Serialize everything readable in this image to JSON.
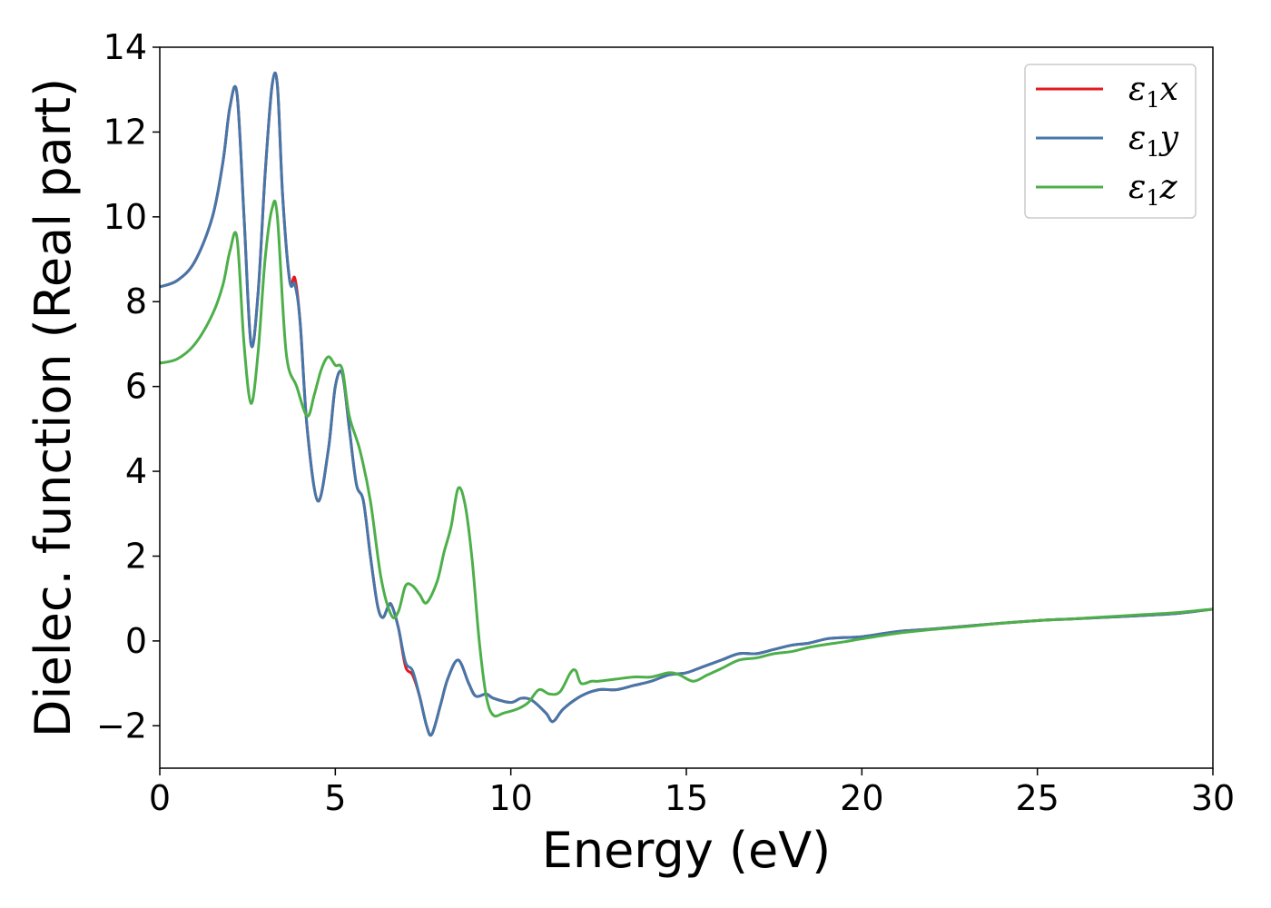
{
  "chart_data": {
    "type": "line",
    "xlabel": "Energy (eV)",
    "ylabel": "Dielec. function (Real part)",
    "xlim": [
      0,
      30
    ],
    "ylim": [
      -3,
      14
    ],
    "xticks": [
      0,
      5,
      10,
      15,
      20,
      25,
      30
    ],
    "xtick_labels": [
      "0",
      "5",
      "10",
      "15",
      "20",
      "25",
      "30"
    ],
    "yticks": [
      -2,
      0,
      2,
      4,
      6,
      8,
      10,
      12,
      14
    ],
    "ytick_labels": [
      "−2",
      "0",
      "2",
      "4",
      "6",
      "8",
      "10",
      "12",
      "14"
    ],
    "grid": false,
    "legend_position": "top-right",
    "series": [
      {
        "name": "ε₁x",
        "name_base": "ε",
        "name_sub": "1",
        "name_var": "x",
        "color": "#e41a1c",
        "x": [
          0,
          0.5,
          1.0,
          1.5,
          1.8,
          2.0,
          2.2,
          2.4,
          2.6,
          2.8,
          3.0,
          3.2,
          3.35,
          3.5,
          3.7,
          3.85,
          4.0,
          4.2,
          4.5,
          4.8,
          5.0,
          5.2,
          5.4,
          5.6,
          5.8,
          6.0,
          6.2,
          6.35,
          6.5,
          6.6,
          6.8,
          7.0,
          7.2,
          7.4,
          7.6,
          7.75,
          8.0,
          8.2,
          8.5,
          8.8,
          9.0,
          9.3,
          9.5,
          10.0,
          10.3,
          10.6,
          11.0,
          11.2,
          11.5,
          12.0,
          12.5,
          13.0,
          13.5,
          14.0,
          14.5,
          15.0,
          15.5,
          16.0,
          16.5,
          17.0,
          17.5,
          18.0,
          18.5,
          19.0,
          19.5,
          20.0,
          21.0,
          22.0,
          23.0,
          24.0,
          25.0,
          26.0,
          27.0,
          28.0,
          29.0,
          30.0
        ],
        "values": [
          8.35,
          8.5,
          8.95,
          10.0,
          11.3,
          12.6,
          12.9,
          10.0,
          7.0,
          8.2,
          11.0,
          13.1,
          13.1,
          10.5,
          8.5,
          8.55,
          7.5,
          5.0,
          3.3,
          4.5,
          6.0,
          6.3,
          5.0,
          3.7,
          3.3,
          2.0,
          0.85,
          0.55,
          0.8,
          0.85,
          0.3,
          -0.6,
          -0.8,
          -1.3,
          -2.0,
          -2.2,
          -1.5,
          -0.9,
          -0.45,
          -1.0,
          -1.3,
          -1.25,
          -1.35,
          -1.45,
          -1.35,
          -1.4,
          -1.7,
          -1.9,
          -1.6,
          -1.3,
          -1.15,
          -1.15,
          -1.05,
          -0.95,
          -0.8,
          -0.75,
          -0.6,
          -0.45,
          -0.3,
          -0.3,
          -0.2,
          -0.1,
          -0.05,
          0.05,
          0.08,
          0.1,
          0.22,
          0.28,
          0.35,
          0.42,
          0.48,
          0.52,
          0.56,
          0.6,
          0.65,
          0.75
        ]
      },
      {
        "name": "ε₁y",
        "name_base": "ε",
        "name_sub": "1",
        "name_var": "y",
        "color": "#4477aa",
        "x": [
          0,
          0.5,
          1.0,
          1.5,
          1.8,
          2.0,
          2.2,
          2.4,
          2.6,
          2.8,
          3.0,
          3.2,
          3.35,
          3.5,
          3.7,
          3.85,
          4.0,
          4.2,
          4.5,
          4.8,
          5.0,
          5.2,
          5.4,
          5.6,
          5.8,
          6.0,
          6.2,
          6.35,
          6.5,
          6.6,
          6.8,
          7.0,
          7.2,
          7.4,
          7.6,
          7.75,
          8.0,
          8.2,
          8.5,
          8.8,
          9.0,
          9.3,
          9.5,
          10.0,
          10.3,
          10.6,
          11.0,
          11.2,
          11.5,
          12.0,
          12.5,
          13.0,
          13.5,
          14.0,
          14.5,
          15.0,
          15.5,
          16.0,
          16.5,
          17.0,
          17.5,
          18.0,
          18.5,
          19.0,
          19.5,
          20.0,
          21.0,
          22.0,
          23.0,
          24.0,
          25.0,
          26.0,
          27.0,
          28.0,
          29.0,
          30.0
        ],
        "values": [
          8.35,
          8.5,
          8.95,
          10.0,
          11.3,
          12.6,
          12.9,
          10.0,
          7.0,
          8.2,
          11.0,
          13.1,
          13.1,
          10.5,
          8.5,
          8.4,
          7.5,
          5.0,
          3.3,
          4.5,
          6.0,
          6.3,
          5.0,
          3.7,
          3.3,
          2.0,
          0.85,
          0.55,
          0.8,
          0.85,
          0.3,
          -0.5,
          -0.7,
          -1.3,
          -2.0,
          -2.2,
          -1.5,
          -0.9,
          -0.45,
          -1.0,
          -1.3,
          -1.25,
          -1.35,
          -1.45,
          -1.35,
          -1.4,
          -1.7,
          -1.9,
          -1.6,
          -1.3,
          -1.15,
          -1.15,
          -1.05,
          -0.95,
          -0.8,
          -0.75,
          -0.6,
          -0.45,
          -0.3,
          -0.3,
          -0.2,
          -0.1,
          -0.05,
          0.05,
          0.08,
          0.1,
          0.22,
          0.28,
          0.35,
          0.42,
          0.48,
          0.52,
          0.56,
          0.6,
          0.65,
          0.75
        ]
      },
      {
        "name": "ε₁z",
        "name_base": "ε",
        "name_sub": "1",
        "name_var": "z",
        "color": "#4daf4a",
        "x": [
          0,
          0.5,
          1.0,
          1.5,
          1.8,
          2.0,
          2.2,
          2.4,
          2.6,
          2.8,
          3.0,
          3.2,
          3.35,
          3.6,
          3.9,
          4.2,
          4.4,
          4.6,
          4.8,
          5.0,
          5.2,
          5.4,
          5.7,
          6.0,
          6.3,
          6.6,
          6.8,
          7.0,
          7.2,
          7.4,
          7.6,
          7.9,
          8.1,
          8.3,
          8.5,
          8.7,
          8.9,
          9.1,
          9.3,
          9.5,
          9.8,
          10.2,
          10.5,
          10.8,
          11.1,
          11.4,
          11.7,
          11.85,
          12.0,
          12.3,
          12.5,
          13.0,
          13.5,
          14.0,
          14.5,
          14.8,
          15.2,
          15.6,
          16.0,
          16.5,
          17.0,
          17.5,
          18.0,
          18.5,
          19.0,
          19.5,
          20.0,
          21.0,
          22.0,
          23.0,
          24.0,
          25.0,
          26.0,
          27.0,
          28.0,
          29.0,
          30.0
        ],
        "values": [
          6.55,
          6.65,
          7.0,
          7.7,
          8.4,
          9.2,
          9.5,
          7.0,
          5.6,
          6.8,
          9.0,
          10.2,
          10.0,
          6.8,
          6.0,
          5.3,
          5.8,
          6.4,
          6.7,
          6.5,
          6.4,
          5.3,
          4.5,
          3.3,
          1.5,
          0.6,
          0.7,
          1.3,
          1.3,
          1.1,
          0.9,
          1.4,
          2.1,
          2.7,
          3.6,
          3.2,
          1.9,
          0.0,
          -1.3,
          -1.75,
          -1.7,
          -1.6,
          -1.45,
          -1.15,
          -1.25,
          -1.2,
          -0.75,
          -0.7,
          -1.0,
          -0.95,
          -0.95,
          -0.9,
          -0.85,
          -0.85,
          -0.75,
          -0.8,
          -0.95,
          -0.8,
          -0.65,
          -0.45,
          -0.4,
          -0.3,
          -0.25,
          -0.15,
          -0.08,
          -0.02,
          0.05,
          0.18,
          0.27,
          0.34,
          0.42,
          0.48,
          0.52,
          0.57,
          0.62,
          0.67,
          0.75
        ]
      }
    ]
  }
}
